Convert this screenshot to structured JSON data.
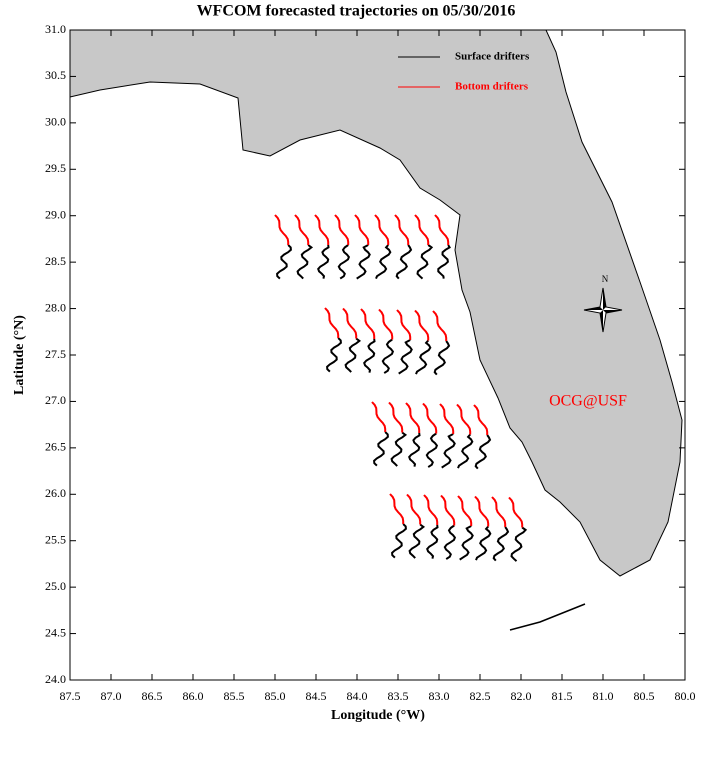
{
  "chart_data": {
    "type": "map",
    "title": "WFCOM forecasted trajectories on 05/30/2016",
    "xlabel": "Longitude (°W)",
    "ylabel": "Latitude (°N)",
    "xlim": [
      87.5,
      80.0
    ],
    "ylim": [
      24.0,
      31.0
    ],
    "xticks": [
      87.5,
      {
        "value": 87,
        "label": "87.0"
      },
      86.5,
      {
        "value": 86,
        "label": "86.0"
      },
      85.5,
      {
        "value": 85,
        "label": "85.0"
      },
      84.5,
      {
        "value": 84,
        "label": "84.0"
      },
      83.5,
      {
        "value": 83,
        "label": "83.0"
      },
      82.5,
      {
        "value": 82,
        "label": "82.0"
      },
      81.5,
      {
        "value": 81,
        "label": "81.0"
      },
      80.5,
      {
        "value": 80,
        "label": "80.0"
      }
    ],
    "yticks": [
      {
        "value": 24,
        "label": "24.0"
      },
      24.5,
      {
        "value": 25,
        "label": "25.0"
      },
      25.5,
      {
        "value": 26,
        "label": "26.0"
      },
      26.5,
      {
        "value": 27,
        "label": "27.0"
      },
      27.5,
      {
        "value": 28,
        "label": "28.0"
      },
      28.5,
      {
        "value": 29,
        "label": "29.0"
      },
      29.5,
      {
        "value": 30,
        "label": "30.0"
      },
      30.5,
      {
        "value": 31,
        "label": "31.0"
      }
    ],
    "legend": [
      {
        "name": "Surface drifters",
        "color": "#000000"
      },
      {
        "name": "Bottom drifters",
        "color": "#ff0000"
      }
    ],
    "annotation": "OCG@USF",
    "compass": "N"
  }
}
